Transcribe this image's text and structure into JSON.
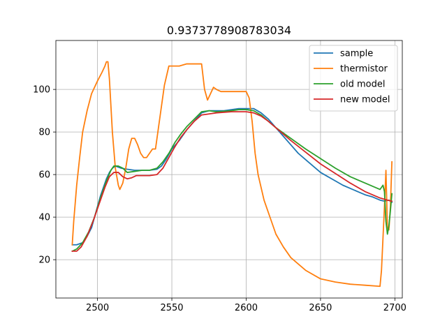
{
  "chart_data": {
    "type": "line",
    "title": "0.9373778908783034",
    "xlabel": "",
    "ylabel": "",
    "xlim": [
      2472,
      2705
    ],
    "ylim": [
      2,
      123
    ],
    "xticks": [
      2500,
      2550,
      2600,
      2650,
      2700
    ],
    "yticks": [
      20,
      40,
      60,
      80,
      100
    ],
    "grid": true,
    "legend_position": "upper right",
    "series": [
      {
        "name": "sample",
        "color": "#1f77b4",
        "points": [
          [
            2483,
            27
          ],
          [
            2486,
            27
          ],
          [
            2490,
            28
          ],
          [
            2493,
            31
          ],
          [
            2496,
            35
          ],
          [
            2498,
            40
          ],
          [
            2500,
            45
          ],
          [
            2502,
            50
          ],
          [
            2504,
            54
          ],
          [
            2506,
            58
          ],
          [
            2508,
            61
          ],
          [
            2510,
            63
          ],
          [
            2512,
            64
          ],
          [
            2516,
            63
          ],
          [
            2520,
            62.5
          ],
          [
            2525,
            62
          ],
          [
            2530,
            62
          ],
          [
            2535,
            62
          ],
          [
            2540,
            62.5
          ],
          [
            2543,
            64
          ],
          [
            2546,
            67
          ],
          [
            2550,
            72
          ],
          [
            2555,
            76
          ],
          [
            2560,
            81
          ],
          [
            2565,
            85
          ],
          [
            2570,
            89
          ],
          [
            2575,
            90
          ],
          [
            2580,
            90
          ],
          [
            2585,
            90
          ],
          [
            2590,
            90.5
          ],
          [
            2595,
            91
          ],
          [
            2600,
            91
          ],
          [
            2605,
            91
          ],
          [
            2610,
            89
          ],
          [
            2615,
            86
          ],
          [
            2620,
            82
          ],
          [
            2625,
            78
          ],
          [
            2630,
            74
          ],
          [
            2635,
            70
          ],
          [
            2640,
            67
          ],
          [
            2645,
            64
          ],
          [
            2650,
            61
          ],
          [
            2655,
            59
          ],
          [
            2660,
            57
          ],
          [
            2665,
            55
          ],
          [
            2670,
            53.5
          ],
          [
            2675,
            52
          ],
          [
            2680,
            50.5
          ],
          [
            2685,
            49.5
          ],
          [
            2690,
            48
          ],
          [
            2693,
            47.5
          ],
          [
            2696,
            48
          ],
          [
            2698,
            47
          ]
        ]
      },
      {
        "name": "thermistor",
        "color": "#ff7f0e",
        "points": [
          [
            2483,
            27
          ],
          [
            2484,
            38
          ],
          [
            2486,
            55
          ],
          [
            2488,
            68
          ],
          [
            2490,
            80
          ],
          [
            2493,
            90
          ],
          [
            2496,
            98
          ],
          [
            2500,
            104
          ],
          [
            2503,
            108
          ],
          [
            2505,
            111
          ],
          [
            2506,
            113
          ],
          [
            2507,
            113
          ],
          [
            2508,
            105
          ],
          [
            2510,
            80
          ],
          [
            2512,
            63
          ],
          [
            2514,
            55
          ],
          [
            2515,
            53
          ],
          [
            2517,
            56
          ],
          [
            2519,
            63
          ],
          [
            2521,
            72
          ],
          [
            2523,
            77
          ],
          [
            2525,
            77
          ],
          [
            2527,
            74
          ],
          [
            2529,
            70
          ],
          [
            2531,
            68
          ],
          [
            2533,
            68
          ],
          [
            2535,
            70
          ],
          [
            2537,
            72
          ],
          [
            2539,
            72
          ],
          [
            2541,
            82
          ],
          [
            2543,
            92
          ],
          [
            2545,
            102
          ],
          [
            2547,
            108
          ],
          [
            2548,
            111
          ],
          [
            2550,
            111
          ],
          [
            2555,
            111
          ],
          [
            2560,
            112
          ],
          [
            2565,
            112
          ],
          [
            2570,
            112
          ],
          [
            2572,
            100
          ],
          [
            2574,
            95
          ],
          [
            2576,
            98
          ],
          [
            2578,
            101
          ],
          [
            2580,
            100
          ],
          [
            2583,
            99
          ],
          [
            2586,
            99
          ],
          [
            2590,
            99
          ],
          [
            2595,
            99
          ],
          [
            2600,
            99
          ],
          [
            2602,
            96
          ],
          [
            2604,
            85
          ],
          [
            2606,
            70
          ],
          [
            2608,
            60
          ],
          [
            2612,
            48
          ],
          [
            2616,
            40
          ],
          [
            2620,
            32
          ],
          [
            2625,
            26
          ],
          [
            2630,
            21
          ],
          [
            2640,
            15
          ],
          [
            2650,
            11
          ],
          [
            2660,
            9.5
          ],
          [
            2670,
            8.5
          ],
          [
            2680,
            8
          ],
          [
            2690,
            7.5
          ],
          [
            2691,
            15
          ],
          [
            2693,
            45
          ],
          [
            2694,
            62
          ],
          [
            2695,
            35
          ],
          [
            2696,
            34
          ],
          [
            2697,
            45
          ],
          [
            2698,
            66
          ]
        ]
      },
      {
        "name": "old model",
        "color": "#2ca02c",
        "points": [
          [
            2483,
            24
          ],
          [
            2486,
            25
          ],
          [
            2490,
            28
          ],
          [
            2494,
            33
          ],
          [
            2498,
            40
          ],
          [
            2502,
            49
          ],
          [
            2506,
            57
          ],
          [
            2509,
            62
          ],
          [
            2511,
            64
          ],
          [
            2514,
            64
          ],
          [
            2517,
            63
          ],
          [
            2520,
            61
          ],
          [
            2525,
            61.5
          ],
          [
            2530,
            62
          ],
          [
            2535,
            62
          ],
          [
            2540,
            63
          ],
          [
            2544,
            66
          ],
          [
            2548,
            70
          ],
          [
            2552,
            75
          ],
          [
            2556,
            79
          ],
          [
            2560,
            82.5
          ],
          [
            2565,
            86
          ],
          [
            2570,
            89.5
          ],
          [
            2575,
            90
          ],
          [
            2580,
            89.5
          ],
          [
            2590,
            90
          ],
          [
            2595,
            90.5
          ],
          [
            2600,
            90.5
          ],
          [
            2605,
            90
          ],
          [
            2610,
            88
          ],
          [
            2615,
            85
          ],
          [
            2620,
            82
          ],
          [
            2625,
            79.5
          ],
          [
            2630,
            77
          ],
          [
            2640,
            72
          ],
          [
            2650,
            67.5
          ],
          [
            2660,
            63
          ],
          [
            2670,
            59
          ],
          [
            2680,
            56
          ],
          [
            2690,
            53
          ],
          [
            2692,
            55
          ],
          [
            2693,
            52
          ],
          [
            2694,
            38
          ],
          [
            2695,
            32
          ],
          [
            2696,
            36
          ],
          [
            2697,
            43
          ],
          [
            2698,
            51
          ]
        ]
      },
      {
        "name": "new model",
        "color": "#d62728",
        "points": [
          [
            2483,
            24
          ],
          [
            2486,
            24
          ],
          [
            2489,
            26
          ],
          [
            2493,
            31
          ],
          [
            2497,
            38
          ],
          [
            2501,
            46
          ],
          [
            2505,
            54
          ],
          [
            2508,
            59
          ],
          [
            2511,
            61
          ],
          [
            2514,
            61
          ],
          [
            2517,
            59
          ],
          [
            2520,
            58
          ],
          [
            2523,
            58.5
          ],
          [
            2526,
            59.5
          ],
          [
            2530,
            59.5
          ],
          [
            2535,
            59.5
          ],
          [
            2540,
            60
          ],
          [
            2544,
            63
          ],
          [
            2548,
            68
          ],
          [
            2552,
            73
          ],
          [
            2556,
            77.5
          ],
          [
            2560,
            81
          ],
          [
            2565,
            85
          ],
          [
            2570,
            88
          ],
          [
            2575,
            88.5
          ],
          [
            2580,
            89
          ],
          [
            2590,
            89.5
          ],
          [
            2600,
            89.5
          ],
          [
            2605,
            89
          ],
          [
            2610,
            87.5
          ],
          [
            2615,
            85
          ],
          [
            2620,
            82
          ],
          [
            2625,
            79
          ],
          [
            2630,
            76
          ],
          [
            2640,
            70.5
          ],
          [
            2650,
            65
          ],
          [
            2660,
            60.5
          ],
          [
            2670,
            56
          ],
          [
            2680,
            52
          ],
          [
            2690,
            49
          ],
          [
            2695,
            48
          ],
          [
            2698,
            47.5
          ]
        ]
      }
    ]
  }
}
